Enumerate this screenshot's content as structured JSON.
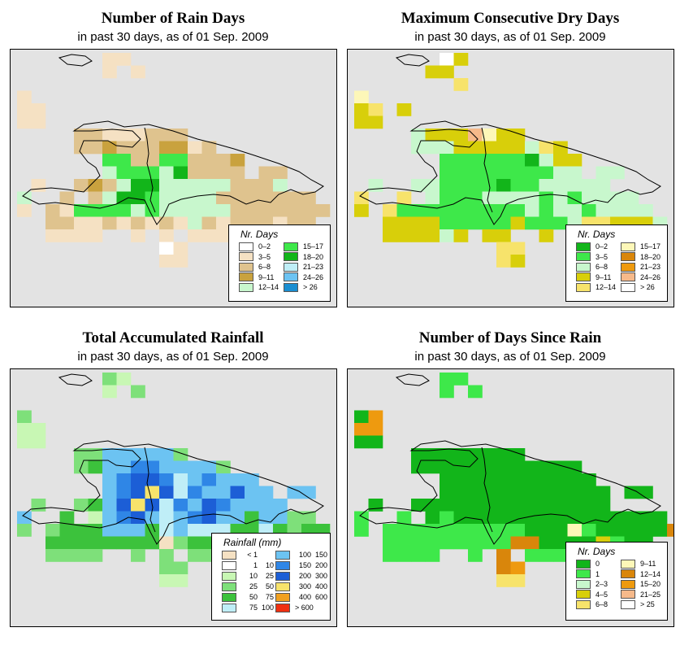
{
  "panels": [
    {
      "id": "rain-days",
      "title": "Number of Rain Days",
      "subtitle": "in past 30 days, as of  01 Sep. 2009",
      "legend": {
        "title": "Nr. Days",
        "entries": [
          {
            "label": "0–2",
            "color": "#ffffff"
          },
          {
            "label": "3–5",
            "color": "#f5e1c3"
          },
          {
            "label": "6–8",
            "color": "#dfc38e"
          },
          {
            "label": "9–11",
            "color": "#c9a23e"
          },
          {
            "label": "12–14",
            "color": "#c8f7cd"
          },
          {
            "label": "15–17",
            "color": "#3ee84a"
          },
          {
            "label": "18–20",
            "color": "#12b51a"
          },
          {
            "label": "21–23",
            "color": "#bfeef7"
          },
          {
            "label": "24–26",
            "color": "#6cc3f2"
          },
          {
            "label": "> 26",
            "color": "#1a8ed1"
          }
        ]
      }
    },
    {
      "id": "dry-days",
      "title": "Maximum Consecutive Dry Days",
      "subtitle": "in past 30 days, as of  01 Sep. 2009",
      "legend": {
        "title": "Nr. Days",
        "entries": [
          {
            "label": "0–2",
            "color": "#12b51a"
          },
          {
            "label": "3–5",
            "color": "#3ee84a"
          },
          {
            "label": "6–8",
            "color": "#c8f7cd"
          },
          {
            "label": "9–11",
            "color": "#d8cf0a"
          },
          {
            "label": "12–14",
            "color": "#f7e36b"
          },
          {
            "label": "15–17",
            "color": "#fdf7b8"
          },
          {
            "label": "18–20",
            "color": "#d9860b"
          },
          {
            "label": "21–23",
            "color": "#ee9a0f"
          },
          {
            "label": "24–26",
            "color": "#f6b98a"
          },
          {
            "label": "> 26",
            "color": "#ffffff"
          }
        ]
      }
    },
    {
      "id": "rainfall",
      "title": "Total Accumulated Rainfall",
      "subtitle": "in past 30 days, as of  01 Sep. 2009",
      "legend": {
        "title": "Rainfall (mm)",
        "entries": [
          {
            "a": "< 1",
            "b": "",
            "color": "#f5e1c3"
          },
          {
            "a": "1",
            "b": "10",
            "color": "#ffffff"
          },
          {
            "a": "10",
            "b": "25",
            "color": "#c8f7b4"
          },
          {
            "a": "25",
            "b": "50",
            "color": "#7ee07a"
          },
          {
            "a": "50",
            "b": "75",
            "color": "#3cc23c"
          },
          {
            "a": "75",
            "b": "100",
            "color": "#bfeef7"
          },
          {
            "a": "100",
            "b": "150",
            "color": "#6cc3f2"
          },
          {
            "a": "150",
            "b": "200",
            "color": "#2f86e6"
          },
          {
            "a": "200",
            "b": "300",
            "color": "#1c5ed6"
          },
          {
            "a": "300",
            "b": "400",
            "color": "#f7e36b"
          },
          {
            "a": "400",
            "b": "600",
            "color": "#f0a020"
          },
          {
            "a": "> 600",
            "b": "",
            "color": "#f03010"
          }
        ]
      }
    },
    {
      "id": "since-rain",
      "title": "Number of Days Since Rain",
      "subtitle": "in past 30 days, as of  01 Sep. 2009",
      "legend": {
        "title": "Nr. Days",
        "entries": [
          {
            "label": "0",
            "color": "#12b51a"
          },
          {
            "label": "1",
            "color": "#3ee84a"
          },
          {
            "label": "2–3",
            "color": "#c8f7cd"
          },
          {
            "label": "4–5",
            "color": "#d8cf0a"
          },
          {
            "label": "6–8",
            "color": "#f7e36b"
          },
          {
            "label": "9–11",
            "color": "#fdf7b8"
          },
          {
            "label": "12–14",
            "color": "#d9860b"
          },
          {
            "label": "15–20",
            "color": "#ee9a0f"
          },
          {
            "label": "21–25",
            "color": "#f6b98a"
          },
          {
            "label": "> 25",
            "color": "#ffffff"
          }
        ]
      }
    }
  ]
}
